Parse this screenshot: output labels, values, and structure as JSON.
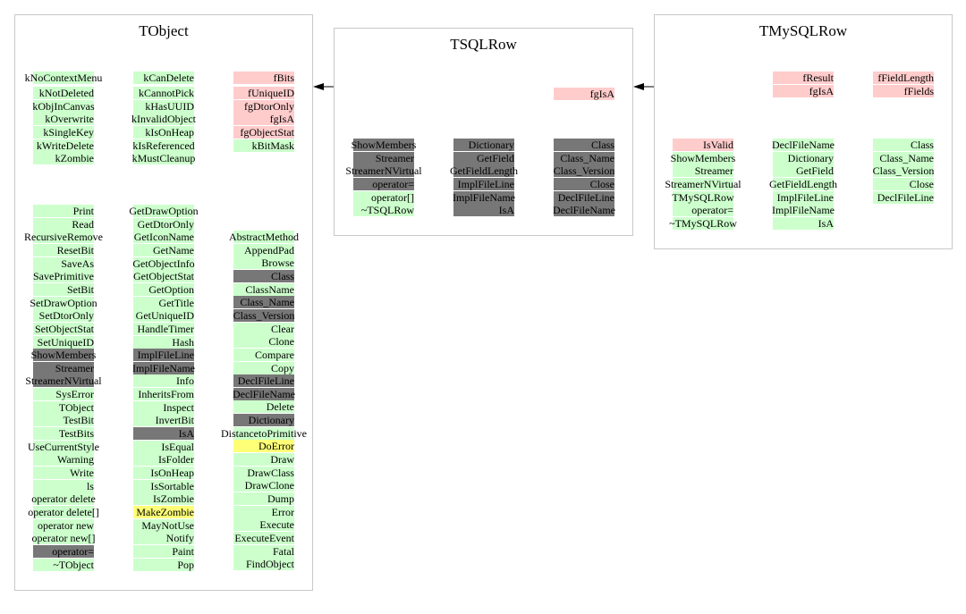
{
  "colors": {
    "public": "#ccffcc",
    "private": "#ffcccc",
    "inherited_overridden": "#777777",
    "protected": "#ffff77",
    "border": "#c8c8c8"
  },
  "classes": [
    {
      "title": "TObject",
      "blocks": [
        {
          "col": 0,
          "row": 0,
          "items": [
            [
              "kNoContextMenu",
              "g"
            ]
          ]
        },
        {
          "col": 0,
          "row": 1,
          "items": [
            [
              "kNotDeleted",
              "g"
            ],
            [
              "kObjInCanvas",
              "g"
            ],
            [
              "kOverwrite",
              "g"
            ],
            [
              "kSingleKey",
              "g"
            ],
            [
              "kWriteDelete",
              "g"
            ],
            [
              "kZombie",
              "g"
            ]
          ]
        },
        {
          "col": 1,
          "row": 0,
          "items": [
            [
              "kCanDelete",
              "g"
            ]
          ]
        },
        {
          "col": 1,
          "row": 1,
          "items": [
            [
              "kCannotPick",
              "g"
            ],
            [
              "kHasUUID",
              "g"
            ],
            [
              "kInvalidObject",
              "g"
            ],
            [
              "kIsOnHeap",
              "g"
            ],
            [
              "kIsReferenced",
              "g"
            ],
            [
              "kMustCleanup",
              "g"
            ]
          ]
        },
        {
          "col": 2,
          "row": 0,
          "items": [
            [
              "fBits",
              "p"
            ]
          ]
        },
        {
          "col": 2,
          "row": 1,
          "items": [
            [
              "fUniqueID",
              "p"
            ],
            [
              "fgDtorOnly",
              "p"
            ],
            [
              "fgIsA",
              "p"
            ],
            [
              "fgObjectStat",
              "p"
            ],
            [
              "kBitMask",
              "g"
            ]
          ]
        },
        {
          "col": 0,
          "row": 2,
          "items": [
            [
              "Print",
              "g"
            ],
            [
              "Read",
              "g"
            ],
            [
              "RecursiveRemove",
              "g"
            ],
            [
              "ResetBit",
              "g"
            ],
            [
              "SaveAs",
              "g"
            ],
            [
              "SavePrimitive",
              "g"
            ],
            [
              "SetBit",
              "g"
            ],
            [
              "SetDrawOption",
              "g"
            ],
            [
              "SetDtorOnly",
              "g"
            ],
            [
              "SetObjectStat",
              "g"
            ],
            [
              "SetUniqueID",
              "g"
            ],
            [
              "ShowMembers",
              "d"
            ],
            [
              "Streamer",
              "d"
            ],
            [
              "StreamerNVirtual",
              "d"
            ],
            [
              "SysError",
              "g"
            ],
            [
              "TObject",
              "g"
            ],
            [
              "TestBit",
              "g"
            ],
            [
              "TestBits",
              "g"
            ],
            [
              "UseCurrentStyle",
              "g"
            ],
            [
              "Warning",
              "g"
            ],
            [
              "Write",
              "g"
            ],
            [
              "ls",
              "g"
            ],
            [
              "operator delete",
              "g"
            ],
            [
              "operator delete[]",
              "g"
            ],
            [
              "operator new",
              "g"
            ],
            [
              "operator new[]",
              "g"
            ],
            [
              "operator=",
              "d"
            ],
            [
              "~TObject",
              "g"
            ]
          ]
        },
        {
          "col": 1,
          "row": 2,
          "items": [
            [
              "GetDrawOption",
              "g"
            ],
            [
              "GetDtorOnly",
              "g"
            ],
            [
              "GetIconName",
              "g"
            ],
            [
              "GetName",
              "g"
            ],
            [
              "GetObjectInfo",
              "g"
            ],
            [
              "GetObjectStat",
              "g"
            ],
            [
              "GetOption",
              "g"
            ],
            [
              "GetTitle",
              "g"
            ],
            [
              "GetUniqueID",
              "g"
            ],
            [
              "HandleTimer",
              "g"
            ],
            [
              "Hash",
              "g"
            ],
            [
              "ImplFileLine",
              "d"
            ],
            [
              "ImplFileName",
              "d"
            ],
            [
              "Info",
              "g"
            ],
            [
              "InheritsFrom",
              "g"
            ],
            [
              "Inspect",
              "g"
            ],
            [
              "InvertBit",
              "g"
            ],
            [
              "IsA",
              "d"
            ],
            [
              "IsEqual",
              "g"
            ],
            [
              "IsFolder",
              "g"
            ],
            [
              "IsOnHeap",
              "g"
            ],
            [
              "IsSortable",
              "g"
            ],
            [
              "IsZombie",
              "g"
            ],
            [
              "MakeZombie",
              "y"
            ],
            [
              "MayNotUse",
              "g"
            ],
            [
              "Notify",
              "g"
            ],
            [
              "Paint",
              "g"
            ],
            [
              "Pop",
              "g"
            ]
          ]
        },
        {
          "col": 2,
          "row": 3,
          "items": [
            [
              "AbstractMethod",
              "g"
            ],
            [
              "AppendPad",
              "g"
            ],
            [
              "Browse",
              "g"
            ],
            [
              "Class",
              "d"
            ],
            [
              "ClassName",
              "g"
            ],
            [
              "Class_Name",
              "d"
            ],
            [
              "Class_Version",
              "d"
            ],
            [
              "Clear",
              "g"
            ],
            [
              "Clone",
              "g"
            ],
            [
              "Compare",
              "g"
            ],
            [
              "Copy",
              "g"
            ],
            [
              "DeclFileLine",
              "d"
            ],
            [
              "DeclFileName",
              "d"
            ],
            [
              "Delete",
              "g"
            ],
            [
              "Dictionary",
              "d"
            ],
            [
              "DistancetoPrimitive",
              "g"
            ],
            [
              "DoError",
              "y"
            ],
            [
              "Draw",
              "g"
            ],
            [
              "DrawClass",
              "g"
            ],
            [
              "DrawClone",
              "g"
            ],
            [
              "Dump",
              "g"
            ],
            [
              "Error",
              "g"
            ],
            [
              "Execute",
              "g"
            ],
            [
              "ExecuteEvent",
              "g"
            ],
            [
              "Fatal",
              "g"
            ],
            [
              "FindObject",
              "g"
            ]
          ]
        }
      ]
    },
    {
      "title": "TSQLRow",
      "blocks": [
        {
          "col": 2,
          "row": 0,
          "items": [
            [
              "fgIsA",
              "p"
            ]
          ]
        },
        {
          "col": 0,
          "row": 1,
          "items": [
            [
              "ShowMembers",
              "d"
            ],
            [
              "Streamer",
              "d"
            ],
            [
              "StreamerNVirtual",
              "d"
            ],
            [
              "operator=",
              "d"
            ],
            [
              "operator[]",
              "g"
            ],
            [
              "~TSQLRow",
              "g"
            ]
          ]
        },
        {
          "col": 1,
          "row": 1,
          "items": [
            [
              "Dictionary",
              "d"
            ],
            [
              "GetField",
              "d"
            ],
            [
              "GetFieldLength",
              "d"
            ],
            [
              "ImplFileLine",
              "d"
            ],
            [
              "ImplFileName",
              "d"
            ],
            [
              "IsA",
              "d"
            ]
          ]
        },
        {
          "col": 2,
          "row": 1,
          "items": [
            [
              "Class",
              "d"
            ],
            [
              "Class_Name",
              "d"
            ],
            [
              "Class_Version",
              "d"
            ],
            [
              "Close",
              "d"
            ],
            [
              "DeclFileLine",
              "d"
            ],
            [
              "DeclFileName",
              "d"
            ]
          ]
        }
      ]
    },
    {
      "title": "TMySQLRow",
      "blocks": [
        {
          "col": 1,
          "row": 0,
          "items": [
            [
              "fResult",
              "p"
            ],
            [
              "fgIsA",
              "p"
            ]
          ]
        },
        {
          "col": 2,
          "row": 0,
          "items": [
            [
              "fFieldLength",
              "p"
            ],
            [
              "fFields",
              "p"
            ]
          ]
        },
        {
          "col": 0,
          "row": 1,
          "items": [
            [
              "IsValid",
              "p"
            ],
            [
              "ShowMembers",
              "g"
            ],
            [
              "Streamer",
              "g"
            ],
            [
              "StreamerNVirtual",
              "g"
            ],
            [
              "TMySQLRow",
              "g"
            ],
            [
              "operator=",
              "g"
            ],
            [
              "~TMySQLRow",
              "g"
            ]
          ]
        },
        {
          "col": 1,
          "row": 1,
          "items": [
            [
              "DeclFileName",
              "g"
            ],
            [
              "Dictionary",
              "g"
            ],
            [
              "GetField",
              "g"
            ],
            [
              "GetFieldLength",
              "g"
            ],
            [
              "ImplFileLine",
              "g"
            ],
            [
              "ImplFileName",
              "g"
            ],
            [
              "IsA",
              "g"
            ]
          ]
        },
        {
          "col": 2,
          "row": 1,
          "items": [
            [
              "Class",
              "g"
            ],
            [
              "Class_Name",
              "g"
            ],
            [
              "Class_Version",
              "g"
            ],
            [
              "Close",
              "g"
            ],
            [
              "DeclFileLine",
              "g"
            ]
          ]
        }
      ]
    }
  ],
  "inheritance": [
    [
      "TSQLRow",
      "TObject"
    ],
    [
      "TMySQLRow",
      "TSQLRow"
    ]
  ]
}
